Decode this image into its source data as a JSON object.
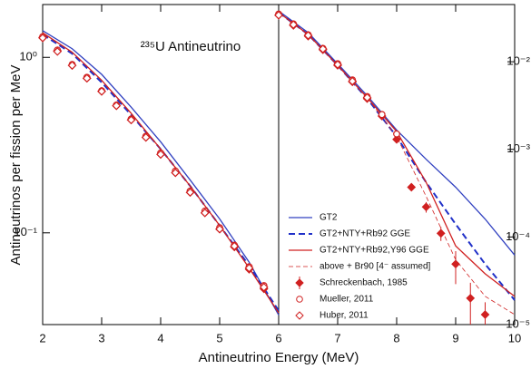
{
  "chart_data": [
    {
      "type": "line",
      "title": "²³⁵U Antineutrino",
      "xlabel": "Antineutrino Energy (MeV)",
      "ylabel": "Antineutrinos per fission per MeV",
      "xlim": [
        2,
        6
      ],
      "xticks": [
        2,
        3,
        4,
        5,
        6
      ],
      "ylim": [
        0.03,
        2
      ],
      "log_y": true,
      "yticks": [
        {
          "value": 1,
          "label": "10⁰"
        },
        {
          "value": 0.1,
          "label": "10⁻¹"
        }
      ],
      "series": [
        {
          "color": "#3040c0",
          "style": "solid",
          "x": [
            2,
            2.5,
            3,
            3.5,
            4,
            4.5,
            5,
            5.5,
            6
          ],
          "values": [
            1.42,
            1.12,
            0.8,
            0.52,
            0.33,
            0.2,
            0.12,
            0.068,
            0.034
          ]
        },
        {
          "color": "#2030c8",
          "style": "dashed",
          "x": [
            2,
            2.5,
            3,
            3.5,
            4,
            4.5,
            5,
            5.5,
            6
          ],
          "values": [
            1.35,
            1.05,
            0.72,
            0.47,
            0.3,
            0.185,
            0.11,
            0.065,
            0.036
          ]
        },
        {
          "color": "#d02020",
          "style": "solid",
          "x": [
            2,
            2.5,
            3,
            3.5,
            4,
            4.5,
            5,
            5.5,
            6
          ],
          "values": [
            1.38,
            1.07,
            0.74,
            0.48,
            0.3,
            0.185,
            0.11,
            0.063,
            0.035
          ]
        },
        {
          "color": "#d02020",
          "style": "thin-dashed",
          "x": [
            2,
            2.5,
            3,
            3.5,
            4,
            4.5,
            5,
            5.5,
            6
          ],
          "values": [
            1.38,
            1.07,
            0.74,
            0.48,
            0.3,
            0.185,
            0.11,
            0.063,
            0.035
          ]
        },
        {
          "color": "#d02020",
          "marker": "diamond-filled",
          "x": [
            2,
            2.25,
            2.5,
            2.75,
            3,
            3.25,
            3.5,
            3.75,
            4,
            4.25,
            4.5,
            4.75,
            5,
            5.25,
            5.5,
            5.75
          ],
          "values": [
            1.3,
            1.09,
            0.9,
            0.76,
            0.64,
            0.53,
            0.44,
            0.35,
            0.28,
            0.22,
            0.17,
            0.13,
            0.105,
            0.083,
            0.062,
            0.048
          ]
        },
        {
          "color": "#d02020",
          "marker": "circle-open",
          "x": [
            2,
            2.25,
            2.5,
            2.75,
            3,
            3.25,
            3.5,
            3.75,
            4,
            4.25,
            4.5,
            4.75,
            5,
            5.25,
            5.5,
            5.75
          ],
          "values": [
            1.31,
            1.1,
            0.91,
            0.77,
            0.645,
            0.535,
            0.445,
            0.355,
            0.285,
            0.225,
            0.173,
            0.133,
            0.107,
            0.085,
            0.064,
            0.05
          ]
        },
        {
          "color": "#d02020",
          "marker": "diamond-open",
          "x": [
            2,
            2.25,
            2.5,
            2.75,
            3,
            3.25,
            3.5,
            3.75,
            4,
            4.25,
            4.5,
            4.75,
            5,
            5.25,
            5.5,
            5.75
          ],
          "values": [
            1.29,
            1.08,
            0.9,
            0.76,
            0.64,
            0.53,
            0.44,
            0.35,
            0.28,
            0.22,
            0.17,
            0.13,
            0.105,
            0.084,
            0.063,
            0.049
          ]
        }
      ]
    },
    {
      "type": "line",
      "xlim": [
        6,
        10
      ],
      "xticks": [
        7,
        8,
        9,
        10
      ],
      "ylim": [
        1e-05,
        0.045
      ],
      "log_y": true,
      "legend": "lower-left",
      "yticks": [
        {
          "value": 0.01,
          "label": "10⁻²"
        },
        {
          "value": 0.001,
          "label": "10⁻³"
        },
        {
          "value": 0.0001,
          "label": "10⁻⁴"
        },
        {
          "value": 1e-05,
          "label": "10⁻⁵"
        }
      ],
      "series": [
        {
          "name": "GT2",
          "color": "#3040c0",
          "style": "solid",
          "x": [
            6,
            6.5,
            7,
            7.5,
            8,
            8.5,
            9,
            9.5,
            10
          ],
          "values": [
            0.038,
            0.0215,
            0.0095,
            0.0041,
            0.00166,
            0.00077,
            0.00037,
            0.00016,
            6.2e-05
          ]
        },
        {
          "name": "GT2+NTY+Rb92 GGE",
          "color": "#2030c8",
          "style": "dashed",
          "x": [
            6,
            6.5,
            7,
            7.5,
            8,
            8.5,
            9,
            9.5,
            10
          ],
          "values": [
            0.0365,
            0.0205,
            0.0091,
            0.0038,
            0.0014,
            0.00042,
            0.00014,
            4.9e-05,
            1.9e-05
          ]
        },
        {
          "name": "GT2+NTY+Rb92,Y96 GGE",
          "color": "#d02020",
          "style": "solid",
          "x": [
            6,
            6.5,
            7,
            7.5,
            8,
            8.5,
            9,
            9.5,
            10
          ],
          "values": [
            0.0365,
            0.0205,
            0.0091,
            0.0039,
            0.0016,
            0.00042,
            7.9e-05,
            3.8e-05,
            2.1e-05
          ]
        },
        {
          "name": "above + Br90 [4⁻ assumed]",
          "color": "#d02020",
          "style": "thin-dashed",
          "x": [
            6,
            6.5,
            7,
            7.5,
            8,
            8.5,
            9,
            9.5,
            10
          ],
          "values": [
            0.0365,
            0.0205,
            0.0091,
            0.0039,
            0.0014,
            0.00029,
            5.5e-05,
            2.1e-05,
            1.3e-05
          ]
        },
        {
          "name": "Schreckenbach, 1985",
          "color": "#d02020",
          "marker": "diamond-filled",
          "x": [
            6,
            6.25,
            6.5,
            6.75,
            7,
            7.25,
            7.5,
            7.75,
            8,
            8.25,
            8.5,
            8.75,
            9,
            9.25,
            9.5
          ],
          "values": [
            0.034,
            0.026,
            0.0196,
            0.0137,
            0.0091,
            0.0059,
            0.0038,
            0.0024,
            0.0013,
            0.00037,
            0.00022,
            0.00011,
            4.9e-05,
            2e-05,
            1.3e-05
          ],
          "errors": [
            0.0007,
            0.0005,
            0.0004,
            0.0003,
            0.0002,
            0.00015,
            0.0001,
            8e-05,
            5e-05,
            2e-05,
            3e-05,
            2e-05,
            2e-05,
            1e-05,
            5e-06
          ]
        },
        {
          "name": "Mueller, 2011",
          "color": "#d02020",
          "marker": "circle-open",
          "x": [
            6,
            6.25,
            6.5,
            6.75,
            7,
            7.25,
            7.5,
            7.75,
            8
          ],
          "values": [
            0.035,
            0.027,
            0.0203,
            0.0142,
            0.0095,
            0.0062,
            0.004,
            0.0025,
            0.0015
          ]
        },
        {
          "name": "Huber, 2011",
          "color": "#d02020",
          "marker": "diamond-open",
          "x": [
            6,
            6.25,
            6.5,
            6.75,
            7,
            7.25,
            7.5
          ],
          "values": [
            0.034,
            0.0265,
            0.02,
            0.014,
            0.0093,
            0.006,
            0.0039
          ]
        }
      ]
    }
  ]
}
